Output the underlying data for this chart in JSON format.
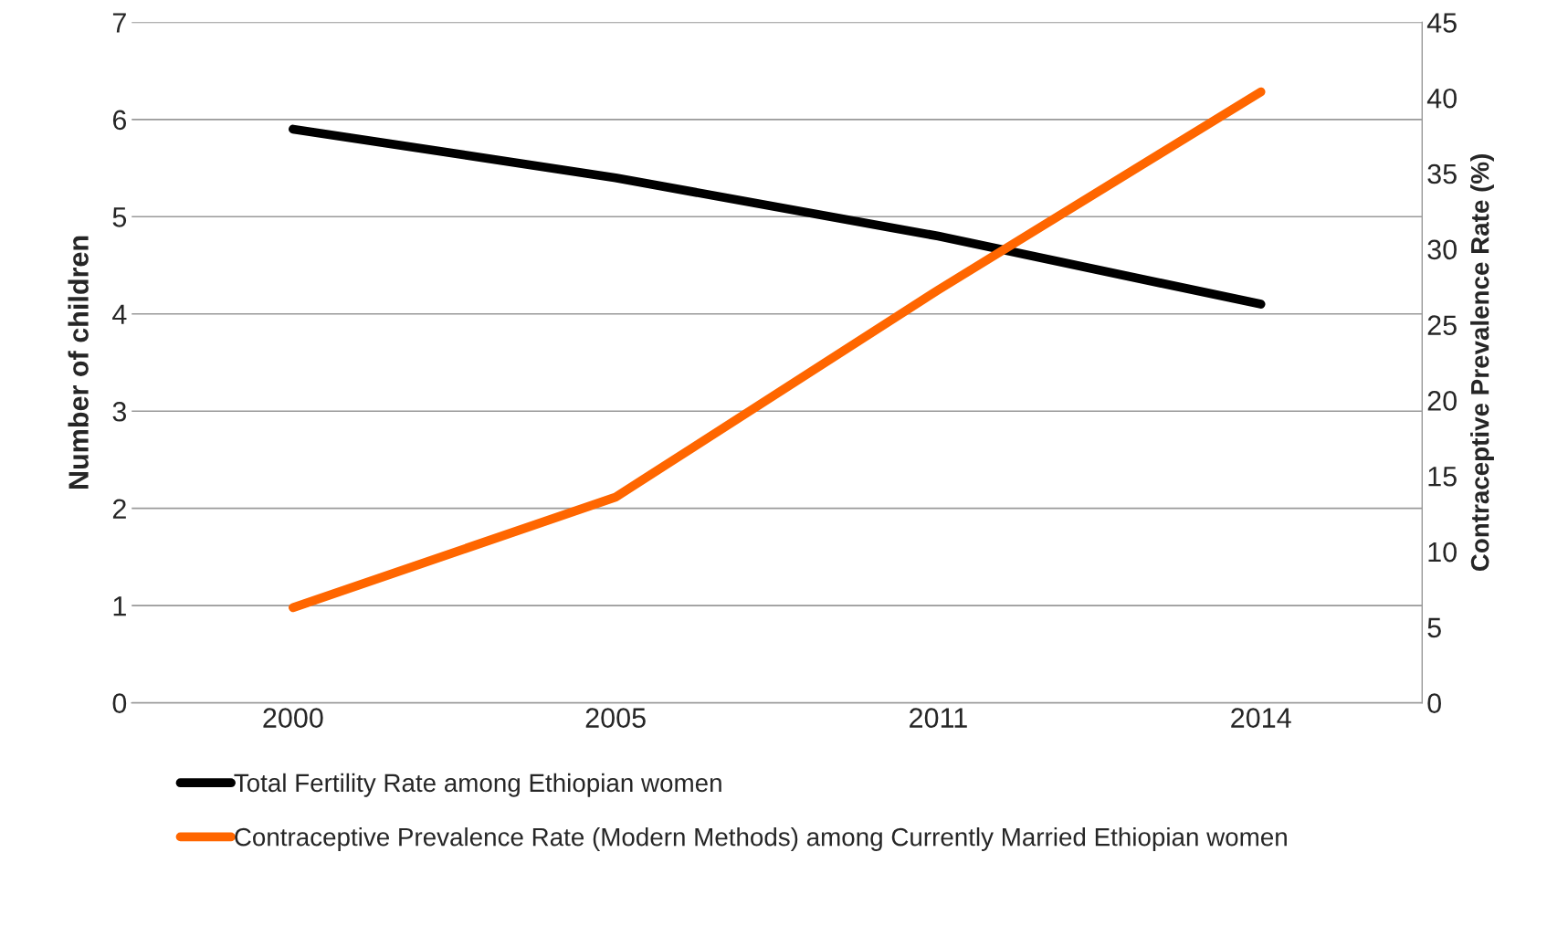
{
  "chart_data": {
    "type": "line",
    "categories": [
      "2000",
      "2005",
      "2011",
      "2014"
    ],
    "ylabel": "Number of children",
    "y2label": "Contraceptive Prevalence Rate (%)",
    "ylim": [
      0,
      7
    ],
    "yticks": [
      0,
      1,
      2,
      3,
      4,
      5,
      6,
      7
    ],
    "y2lim": [
      0,
      45
    ],
    "y2ticks": [
      0,
      5,
      10,
      15,
      20,
      25,
      30,
      35,
      40,
      45
    ],
    "grid": "y",
    "legend": "bottom",
    "marker": "none",
    "line_style": "solid",
    "series": [
      {
        "name": "Total Fertility Rate among Ethiopian women",
        "color": "#000000",
        "values": [
          5.9,
          5.4,
          4.8,
          4.1
        ]
      },
      {
        "name": "Contraceptive Prevalence Rate (Modern Methods) among Currently Married Ethiopian women",
        "color": "#ff6600",
        "axis": "y2",
        "values": [
          6.3,
          13.6,
          27.3,
          40.4
        ]
      }
    ]
  }
}
